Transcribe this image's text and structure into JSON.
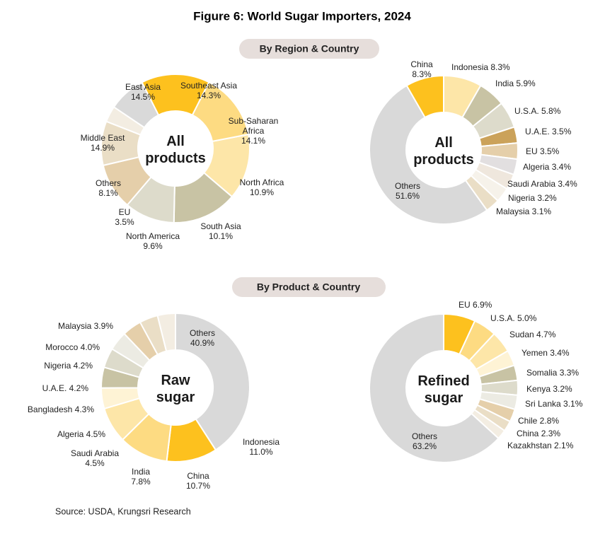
{
  "figure": {
    "title": "Figure 6: World Sugar Importers, 2024",
    "section_top": "By Region & Country",
    "section_bottom": "By Product & Country",
    "source": "Source: USDA, Krungsri Research"
  },
  "chart_data": [
    {
      "type": "pie",
      "variant": "donut",
      "center_label": [
        "All",
        "products"
      ],
      "slices": [
        {
          "label": "Southeast Asia",
          "value": 14.3,
          "color": "#FDE6A8"
        },
        {
          "label": "Sub-Saharan Africa",
          "value": 14.1,
          "color": "#C8C3A4"
        },
        {
          "label": "North Africa",
          "value": 10.9,
          "color": "#DDDBCB"
        },
        {
          "label": "South Asia",
          "value": 10.1,
          "color": "#E5CFAA"
        },
        {
          "label": "North America",
          "value": 9.6,
          "color": "#EADEC6"
        },
        {
          "label": "EU",
          "value": 3.5,
          "color": "#F3EDE2"
        },
        {
          "label": "Others",
          "value": 8.1,
          "color": "#D9D9D9"
        },
        {
          "label": "Middle East",
          "value": 14.9,
          "color": "#FDC11E"
        },
        {
          "label": "East Asia",
          "value": 14.5,
          "color": "#FDDB82"
        }
      ],
      "labels": [
        {
          "lines": [
            "Southeast Asia",
            "14.3%"
          ]
        },
        {
          "lines": [
            "Sub-Saharan",
            "Africa",
            "14.1%"
          ]
        },
        {
          "lines": [
            "North Africa",
            "10.9%"
          ]
        },
        {
          "lines": [
            "South Asia",
            "10.1%"
          ]
        },
        {
          "lines": [
            "North America",
            "9.6%"
          ]
        },
        {
          "lines": [
            "EU",
            "3.5%"
          ]
        },
        {
          "lines": [
            "Others",
            "8.1%"
          ]
        },
        {
          "lines": [
            "Middle East",
            "14.9%"
          ]
        },
        {
          "lines": [
            "East Asia",
            "14.5%"
          ]
        }
      ]
    },
    {
      "type": "pie",
      "variant": "donut",
      "center_label": [
        "All",
        "products"
      ],
      "slices": [
        {
          "label": "Indonesia",
          "value": 8.3,
          "color": "#FDE6A8"
        },
        {
          "label": "India",
          "value": 5.9,
          "color": "#C8C3A4"
        },
        {
          "label": "U.S.A.",
          "value": 5.8,
          "color": "#DDDBCB"
        },
        {
          "label": "U.A.E.",
          "value": 3.5,
          "color": "#CBA25A"
        },
        {
          "label": "EU",
          "value": 3.5,
          "color": "#E5CFAA"
        },
        {
          "label": "Algeria",
          "value": 3.4,
          "color": "#E2DFE0"
        },
        {
          "label": "Saudi Arabia",
          "value": 3.4,
          "color": "#EFE7DD"
        },
        {
          "label": "Nigeria",
          "value": 3.2,
          "color": "#F6F2EA"
        },
        {
          "label": "Malaysia",
          "value": 3.1,
          "color": "#EADEC6"
        },
        {
          "label": "Others",
          "value": 51.6,
          "color": "#D9D9D9"
        },
        {
          "label": "China",
          "value": 8.3,
          "color": "#FDC11E"
        }
      ],
      "labels": [
        {
          "lines": [
            "Indonesia 8.3%"
          ]
        },
        {
          "lines": [
            "India 5.9%"
          ]
        },
        {
          "lines": [
            "U.S.A. 5.8%"
          ]
        },
        {
          "lines": [
            "U.A.E. 3.5%"
          ]
        },
        {
          "lines": [
            "EU 3.5%"
          ]
        },
        {
          "lines": [
            "Algeria 3.4%"
          ]
        },
        {
          "lines": [
            "Saudi Arabia 3.4%"
          ]
        },
        {
          "lines": [
            "Nigeria 3.2%"
          ]
        },
        {
          "lines": [
            "Malaysia 3.1%"
          ]
        },
        {
          "lines": [
            "Others",
            "51.6%"
          ]
        },
        {
          "lines": [
            "China",
            "8.3%"
          ]
        }
      ]
    },
    {
      "type": "pie",
      "variant": "donut",
      "center_label": [
        "Raw",
        "sugar"
      ],
      "slices": [
        {
          "label": "Others",
          "value": 40.9,
          "color": "#D9D9D9"
        },
        {
          "label": "Indonesia",
          "value": 11.0,
          "color": "#FDC11E"
        },
        {
          "label": "China",
          "value": 10.7,
          "color": "#FDDB82"
        },
        {
          "label": "India",
          "value": 7.8,
          "color": "#FDE6A8"
        },
        {
          "label": "Saudi Arabia",
          "value": 4.5,
          "color": "#FEF3D5"
        },
        {
          "label": "Algeria",
          "value": 4.5,
          "color": "#C8C3A4"
        },
        {
          "label": "Bangladesh",
          "value": 4.3,
          "color": "#DDDBCB"
        },
        {
          "label": "U.A.E.",
          "value": 4.2,
          "color": "#ECEBE3"
        },
        {
          "label": "Nigeria",
          "value": 4.2,
          "color": "#E5CFAA"
        },
        {
          "label": "Morocco",
          "value": 4.0,
          "color": "#EADEC6"
        },
        {
          "label": "Malaysia",
          "value": 3.9,
          "color": "#F3EDE2"
        }
      ],
      "labels": [
        {
          "lines": [
            "Others",
            "40.9%"
          ]
        },
        {
          "lines": [
            "Indonesia",
            "11.0%"
          ]
        },
        {
          "lines": [
            "China",
            "10.7%"
          ]
        },
        {
          "lines": [
            "India",
            "7.8%"
          ]
        },
        {
          "lines": [
            "Saudi Arabia",
            "4.5%"
          ]
        },
        {
          "lines": [
            "Algeria 4.5%"
          ]
        },
        {
          "lines": [
            "Bangladesh 4.3%"
          ]
        },
        {
          "lines": [
            "U.A.E. 4.2%"
          ]
        },
        {
          "lines": [
            "Nigeria 4.2%"
          ]
        },
        {
          "lines": [
            "Morocco 4.0%"
          ]
        },
        {
          "lines": [
            "Malaysia 3.9%"
          ]
        }
      ]
    },
    {
      "type": "pie",
      "variant": "donut",
      "center_label": [
        "Refined",
        "sugar"
      ],
      "slices": [
        {
          "label": "EU",
          "value": 6.9,
          "color": "#FDC11E"
        },
        {
          "label": "U.S.A.",
          "value": 5.0,
          "color": "#FDDB82"
        },
        {
          "label": "Sudan",
          "value": 4.7,
          "color": "#FDE6A8"
        },
        {
          "label": "Yemen",
          "value": 3.4,
          "color": "#FEF3D5"
        },
        {
          "label": "Somalia",
          "value": 3.3,
          "color": "#C8C3A4"
        },
        {
          "label": "Kenya",
          "value": 3.2,
          "color": "#DDDBCB"
        },
        {
          "label": "Sri Lanka",
          "value": 3.1,
          "color": "#ECEBE3"
        },
        {
          "label": "Chile",
          "value": 2.8,
          "color": "#E5CFAA"
        },
        {
          "label": "China",
          "value": 2.3,
          "color": "#EADEC6"
        },
        {
          "label": "Kazakhstan",
          "value": 2.1,
          "color": "#F3EDE2"
        },
        {
          "label": "Others",
          "value": 63.2,
          "color": "#D9D9D9"
        }
      ],
      "labels": [
        {
          "lines": [
            "EU 6.9%"
          ]
        },
        {
          "lines": [
            "U.S.A. 5.0%"
          ]
        },
        {
          "lines": [
            "Sudan 4.7%"
          ]
        },
        {
          "lines": [
            "Yemen 3.4%"
          ]
        },
        {
          "lines": [
            "Somalia 3.3%"
          ]
        },
        {
          "lines": [
            "Kenya 3.2%"
          ]
        },
        {
          "lines": [
            "Sri Lanka 3.1%"
          ]
        },
        {
          "lines": [
            "Chile 2.8%"
          ]
        },
        {
          "lines": [
            "China 2.3%"
          ]
        },
        {
          "lines": [
            "Kazakhstan 2.1%"
          ]
        },
        {
          "lines": [
            "Others",
            "63.2%"
          ]
        }
      ]
    }
  ]
}
